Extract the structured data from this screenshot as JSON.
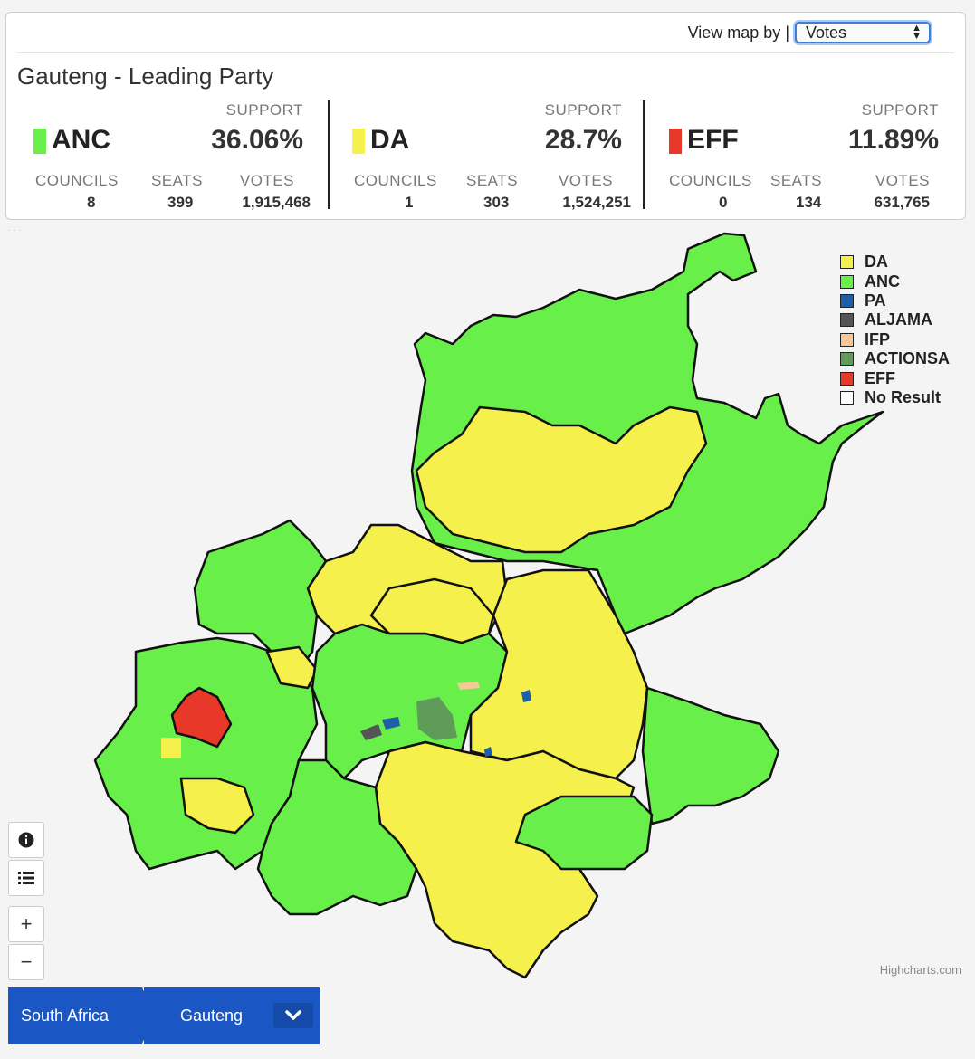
{
  "header": {
    "view_by_label": "View map by |",
    "view_by_value": "Votes",
    "title": "Gauteng - Leading Party"
  },
  "labels": {
    "support": "SUPPORT",
    "councils": "COUNCILS",
    "seats": "SEATS",
    "votes": "VOTES"
  },
  "parties": [
    {
      "name": "ANC",
      "color": "#69ef4a",
      "support": "36.06%",
      "councils": "8",
      "seats": "399",
      "votes": "1,915,468"
    },
    {
      "name": "DA",
      "color": "#f6f04d",
      "support": "28.7%",
      "councils": "1",
      "seats": "303",
      "votes": "1,524,251"
    },
    {
      "name": "EFF",
      "color": "#e8382a",
      "support": "11.89%",
      "councils": "0",
      "seats": "134",
      "votes": "631,765"
    }
  ],
  "legend": [
    {
      "label": "DA",
      "color": "#f6f04d"
    },
    {
      "label": "ANC",
      "color": "#69ef4a"
    },
    {
      "label": "PA",
      "color": "#1f5fa8"
    },
    {
      "label": "ALJAMA",
      "color": "#555555"
    },
    {
      "label": "IFP",
      "color": "#f5c89a"
    },
    {
      "label": "ACTIONSA",
      "color": "#5f9c5a"
    },
    {
      "label": "EFF",
      "color": "#e8382a"
    },
    {
      "label": "No Result",
      "color": "#ffffff"
    }
  ],
  "credits": "Highcharts.com",
  "breadcrumbs": {
    "root": "South Africa",
    "current": "Gauteng"
  },
  "controls": {
    "zoom_in": "+",
    "zoom_out": "−"
  }
}
